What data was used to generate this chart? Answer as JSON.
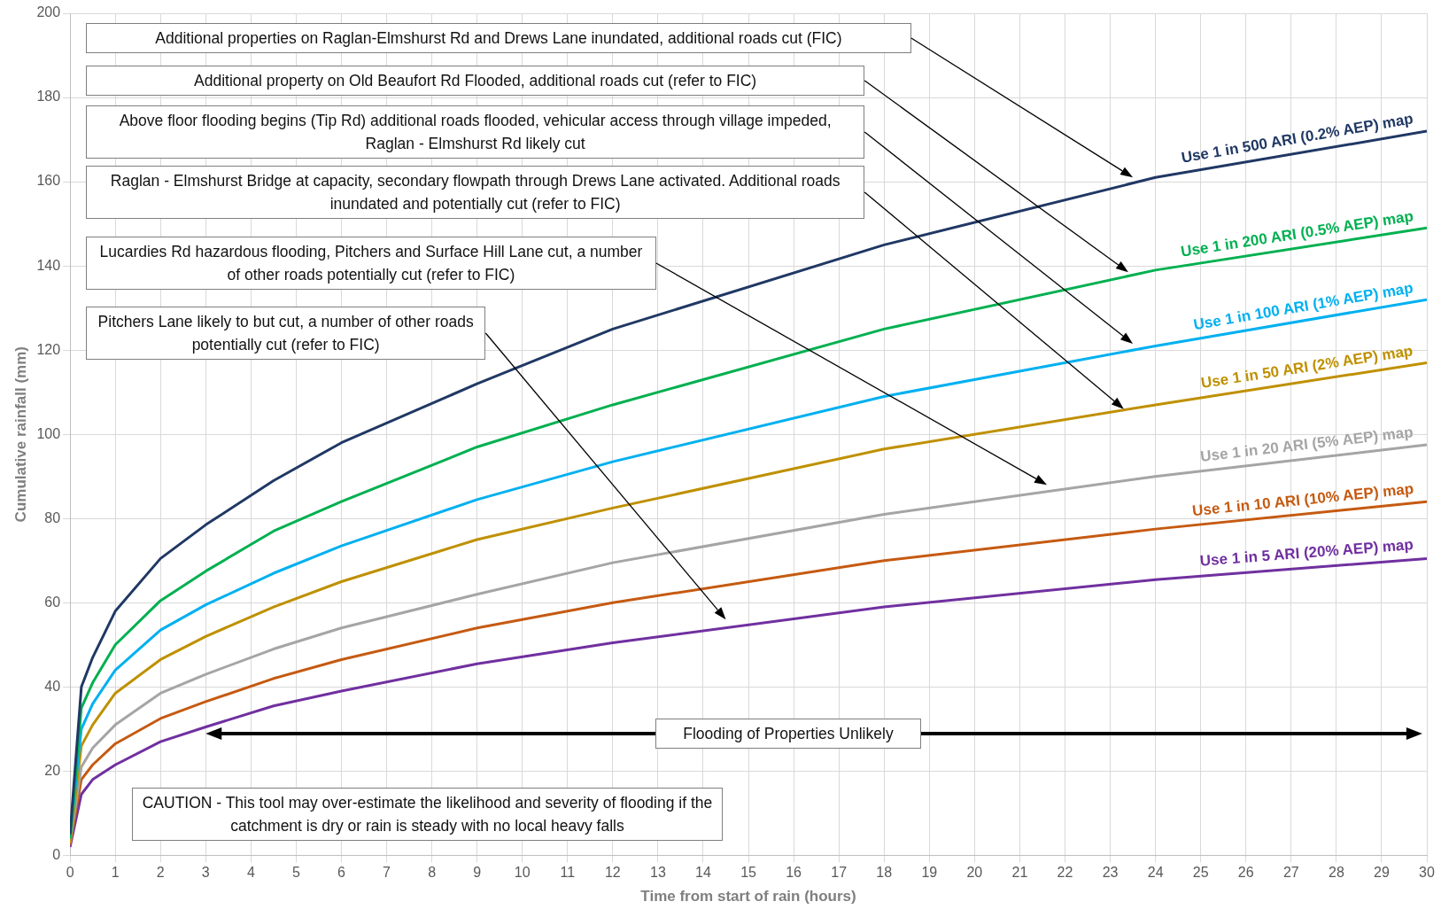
{
  "chart_data": {
    "type": "line",
    "xlabel": "Time from start of rain (hours)",
    "ylabel": "Cumulative rainfall (mm)",
    "x": [
      0,
      0.25,
      0.5,
      1,
      2,
      3,
      4.5,
      6,
      9,
      12,
      18,
      24,
      30
    ],
    "xlim": [
      0,
      30
    ],
    "xticks": [
      0,
      1,
      2,
      3,
      4,
      5,
      6,
      7,
      8,
      9,
      10,
      11,
      12,
      13,
      14,
      15,
      16,
      17,
      18,
      19,
      20,
      21,
      22,
      23,
      24,
      25,
      26,
      27,
      28,
      29,
      30
    ],
    "ylim": [
      0,
      200
    ],
    "yticks": [
      0,
      20,
      40,
      60,
      80,
      100,
      120,
      140,
      160,
      180,
      200
    ],
    "grid": true,
    "legend": false,
    "marker": "none",
    "line_style": "solid",
    "series": [
      {
        "name": "Use 1 in 500 ARI (0.2% AEP) map",
        "color": "#203864",
        "values": [
          5,
          40,
          47,
          58,
          70.5,
          78.5,
          89,
          98,
          112,
          125,
          145,
          161,
          172
        ]
      },
      {
        "name": "Use 1 in 200 ARI (0.5% AEP) map",
        "color": "#00b050",
        "values": [
          4,
          35,
          41,
          50,
          60.5,
          67.5,
          77,
          84,
          97,
          107,
          125,
          139,
          149
        ]
      },
      {
        "name": "Use 1 in 100 ARI (1% AEP) map",
        "color": "#00b0f0",
        "values": [
          4,
          30,
          36,
          44,
          53.5,
          59.5,
          67,
          73.5,
          84.5,
          93.5,
          109,
          121,
          132
        ]
      },
      {
        "name": "Use 1 in 50 ARI (2% AEP) map",
        "color": "#bf9000",
        "values": [
          3,
          26,
          31,
          38.5,
          46.5,
          52,
          59,
          65,
          75,
          82.5,
          96.5,
          107,
          117
        ]
      },
      {
        "name": "Use 1 in 20 ARI (5% AEP) map",
        "color": "#a5a5a5",
        "values": [
          3,
          21,
          25.5,
          31,
          38.5,
          43,
          49,
          54,
          62,
          69.5,
          81,
          90,
          97.5
        ]
      },
      {
        "name": "Use 1 in 10 ARI (10% AEP) map",
        "color": "#c55a11",
        "values": [
          2.5,
          18,
          21.5,
          26.5,
          32.5,
          36.5,
          42,
          46.5,
          54,
          60,
          70,
          77.5,
          84
        ]
      },
      {
        "name": "Use 1 in 5 ARI (20% AEP) map",
        "color": "#7030a0",
        "values": [
          2,
          14.5,
          18,
          21.5,
          27,
          30.5,
          35.5,
          39,
          45.5,
          50.5,
          59,
          65.5,
          70.5
        ]
      }
    ],
    "annotations": [
      "Additional properties on Raglan-Elmshurst Rd and Drews Lane inundated, additional roads cut (FIC)",
      "Additional property on Old Beaufort Rd Flooded, additional roads cut (refer to FIC)",
      "Above floor flooding begins (Tip Rd) additional roads flooded, vehicular access through village impeded, Raglan - Elmshurst Rd likely cut",
      "Raglan - Elmshurst Bridge at capacity, secondary flowpath through Drews Lane activated. Additional roads inundated and potentially cut (refer to FIC)",
      "Lucardies Rd hazardous flooding, Pitchers and Surface Hill Lane cut, a number of other roads potentially cut (refer to FIC)",
      "Pitchers Lane likely to but cut, a number of other roads potentially cut (refer to FIC)",
      "Flooding of Properties Unlikely",
      "CAUTION - This tool may over-estimate the likelihood and severity of flooding if the catchment is dry or rain is steady with no local heavy falls"
    ]
  }
}
